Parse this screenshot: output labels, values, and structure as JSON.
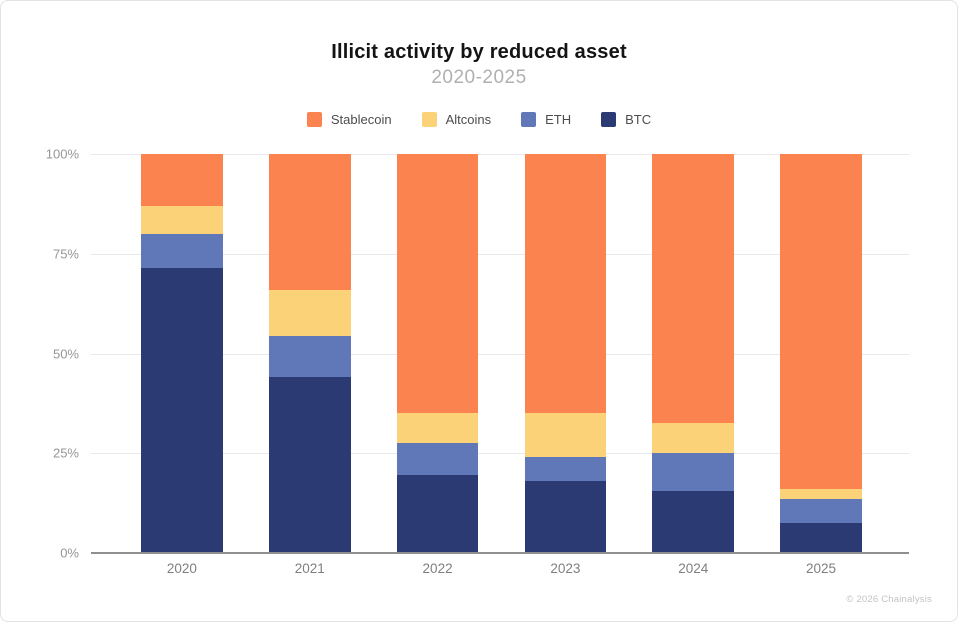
{
  "title": "Illicit activity by reduced asset",
  "subtitle": "2020-2025",
  "footer": "© 2026 Chainalysis",
  "colors": {
    "stablecoin": "#FA8350",
    "altcoins": "#FBD278",
    "eth": "#6077B8",
    "btc": "#2B3A72",
    "gridline": "#E9E9E9",
    "axis_line": "#8F8F8F",
    "tick_label": "#969696",
    "subtitle_gray": "#B0B0B0"
  },
  "chart_data": {
    "type": "bar",
    "stacked": true,
    "title": "Illicit activity by reduced asset",
    "subtitle": "2020-2025",
    "xlabel": "",
    "ylabel": "",
    "ylim": [
      0,
      100
    ],
    "grid": true,
    "legend_position": "top",
    "y_ticks": [
      "100%",
      "75%",
      "50%",
      "25%",
      "0%"
    ],
    "categories": [
      "2020",
      "2021",
      "2022",
      "2023",
      "2024",
      "2025"
    ],
    "series": [
      {
        "name": "Stablecoin",
        "color": "#FA8350",
        "values": [
          13,
          34,
          65,
          65,
          67.5,
          84
        ]
      },
      {
        "name": "Altcoins",
        "color": "#FBD278",
        "values": [
          7,
          11.5,
          7.5,
          11,
          7.5,
          2.5
        ]
      },
      {
        "name": "ETH",
        "color": "#6077B8",
        "values": [
          8.5,
          10.5,
          8,
          6,
          9.5,
          6
        ]
      },
      {
        "name": "BTC",
        "color": "#2B3A72",
        "values": [
          71.5,
          44,
          19.5,
          18,
          15.5,
          7.5
        ]
      }
    ]
  }
}
